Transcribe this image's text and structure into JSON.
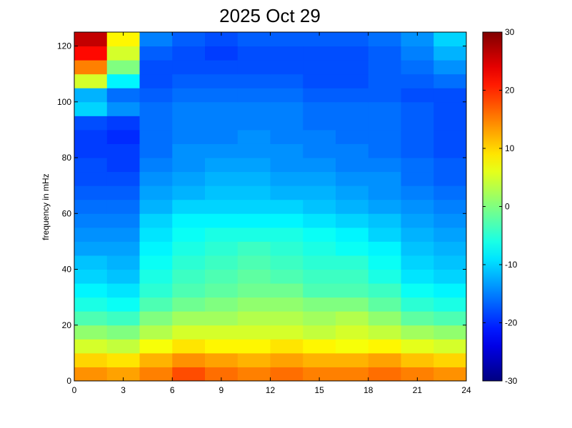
{
  "chart_data": {
    "type": "heatmap",
    "title": "2025 Oct 29",
    "y_label": "frequency in mHz",
    "colormap": "jet",
    "clim": [
      -30,
      30
    ],
    "x_edges": [
      0,
      2,
      4,
      6,
      8,
      10,
      12,
      14,
      16,
      18,
      20,
      22,
      24
    ],
    "y_edges": [
      0,
      5,
      10,
      15,
      20,
      25,
      30,
      35,
      40,
      45,
      50,
      55,
      60,
      65,
      70,
      75,
      80,
      85,
      90,
      95,
      100,
      105,
      110,
      115,
      120,
      125
    ],
    "z": [
      [
        14,
        13,
        15,
        18,
        16,
        15,
        16,
        15,
        15,
        16,
        15,
        14
      ],
      [
        10,
        9,
        12,
        14,
        13,
        12,
        13,
        12,
        12,
        13,
        11,
        10
      ],
      [
        5,
        4,
        7,
        9,
        8,
        8,
        9,
        8,
        7,
        8,
        6,
        5
      ],
      [
        1,
        0,
        3,
        5,
        5,
        5,
        5,
        4,
        5,
        4,
        2,
        1
      ],
      [
        -3,
        -4,
        0,
        2,
        2,
        3,
        3,
        2,
        3,
        1,
        -2,
        -3
      ],
      [
        -6,
        -7,
        -3,
        -1,
        0,
        1,
        1,
        0,
        0,
        -2,
        -5,
        -6
      ],
      [
        -8,
        -9,
        -5,
        -3,
        -2,
        -1,
        -1,
        -3,
        -3,
        -4,
        -7,
        -8
      ],
      [
        -10,
        -11,
        -6,
        -4,
        -3,
        -2,
        -3,
        -4,
        -4,
        -6,
        -9,
        -10
      ],
      [
        -11,
        -12,
        -7,
        -5,
        -4,
        -3,
        -4,
        -5,
        -5,
        -7,
        -10,
        -11
      ],
      [
        -13,
        -13,
        -8,
        -6,
        -5,
        -4,
        -5,
        -6,
        -7,
        -8,
        -11,
        -12
      ],
      [
        -14,
        -14,
        -9,
        -7,
        -6,
        -6,
        -6,
        -7,
        -8,
        -10,
        -12,
        -13
      ],
      [
        -15,
        -15,
        -10,
        -8,
        -8,
        -8,
        -8,
        -9,
        -10,
        -11,
        -13,
        -14
      ],
      [
        -16,
        -16,
        -12,
        -10,
        -10,
        -10,
        -10,
        -11,
        -12,
        -13,
        -14,
        -15
      ],
      [
        -17,
        -17,
        -13,
        -12,
        -11,
        -11,
        -12,
        -12,
        -13,
        -14,
        -15,
        -16
      ],
      [
        -18,
        -18,
        -14,
        -13,
        -12,
        -12,
        -13,
        -13,
        -14,
        -14,
        -16,
        -17
      ],
      [
        -18,
        -19,
        -15,
        -14,
        -13,
        -13,
        -14,
        -14,
        -15,
        -15,
        -16,
        -17
      ],
      [
        -19,
        -19,
        -16,
        -14,
        -14,
        -14,
        -14,
        -15,
        -15,
        -16,
        -17,
        -18
      ],
      [
        -19,
        -20,
        -16,
        -15,
        -15,
        -14,
        -15,
        -15,
        -16,
        -16,
        -17,
        -18
      ],
      [
        -18,
        -19,
        -16,
        -15,
        -15,
        -15,
        -15,
        -16,
        -16,
        -16,
        -17,
        -18
      ],
      [
        -10,
        -14,
        -16,
        -15,
        -15,
        -15,
        -15,
        -16,
        -16,
        -16,
        -17,
        -18
      ],
      [
        -12,
        -16,
        -17,
        -16,
        -16,
        -16,
        -16,
        -17,
        -17,
        -17,
        -18,
        -18
      ],
      [
        5,
        -8,
        -18,
        -17,
        -17,
        -17,
        -17,
        -18,
        -18,
        -17,
        -17,
        -16
      ],
      [
        15,
        0,
        -18,
        -18,
        -18,
        -18,
        -18,
        -18,
        -18,
        -17,
        -16,
        -14
      ],
      [
        22,
        5,
        -17,
        -18,
        -19,
        -18,
        -18,
        -18,
        -18,
        -17,
        -15,
        -12
      ],
      [
        26,
        8,
        -15,
        -17,
        -18,
        -17,
        -17,
        -17,
        -17,
        -16,
        -14,
        -10
      ]
    ],
    "xlim": [
      0,
      24
    ],
    "xticks": [
      0,
      3,
      6,
      9,
      12,
      15,
      18,
      21,
      24
    ],
    "ylim": [
      0,
      125
    ],
    "yticks": [
      0,
      20,
      40,
      60,
      80,
      100,
      120
    ],
    "cticks": [
      -30,
      -20,
      -10,
      0,
      10,
      20,
      30
    ]
  }
}
